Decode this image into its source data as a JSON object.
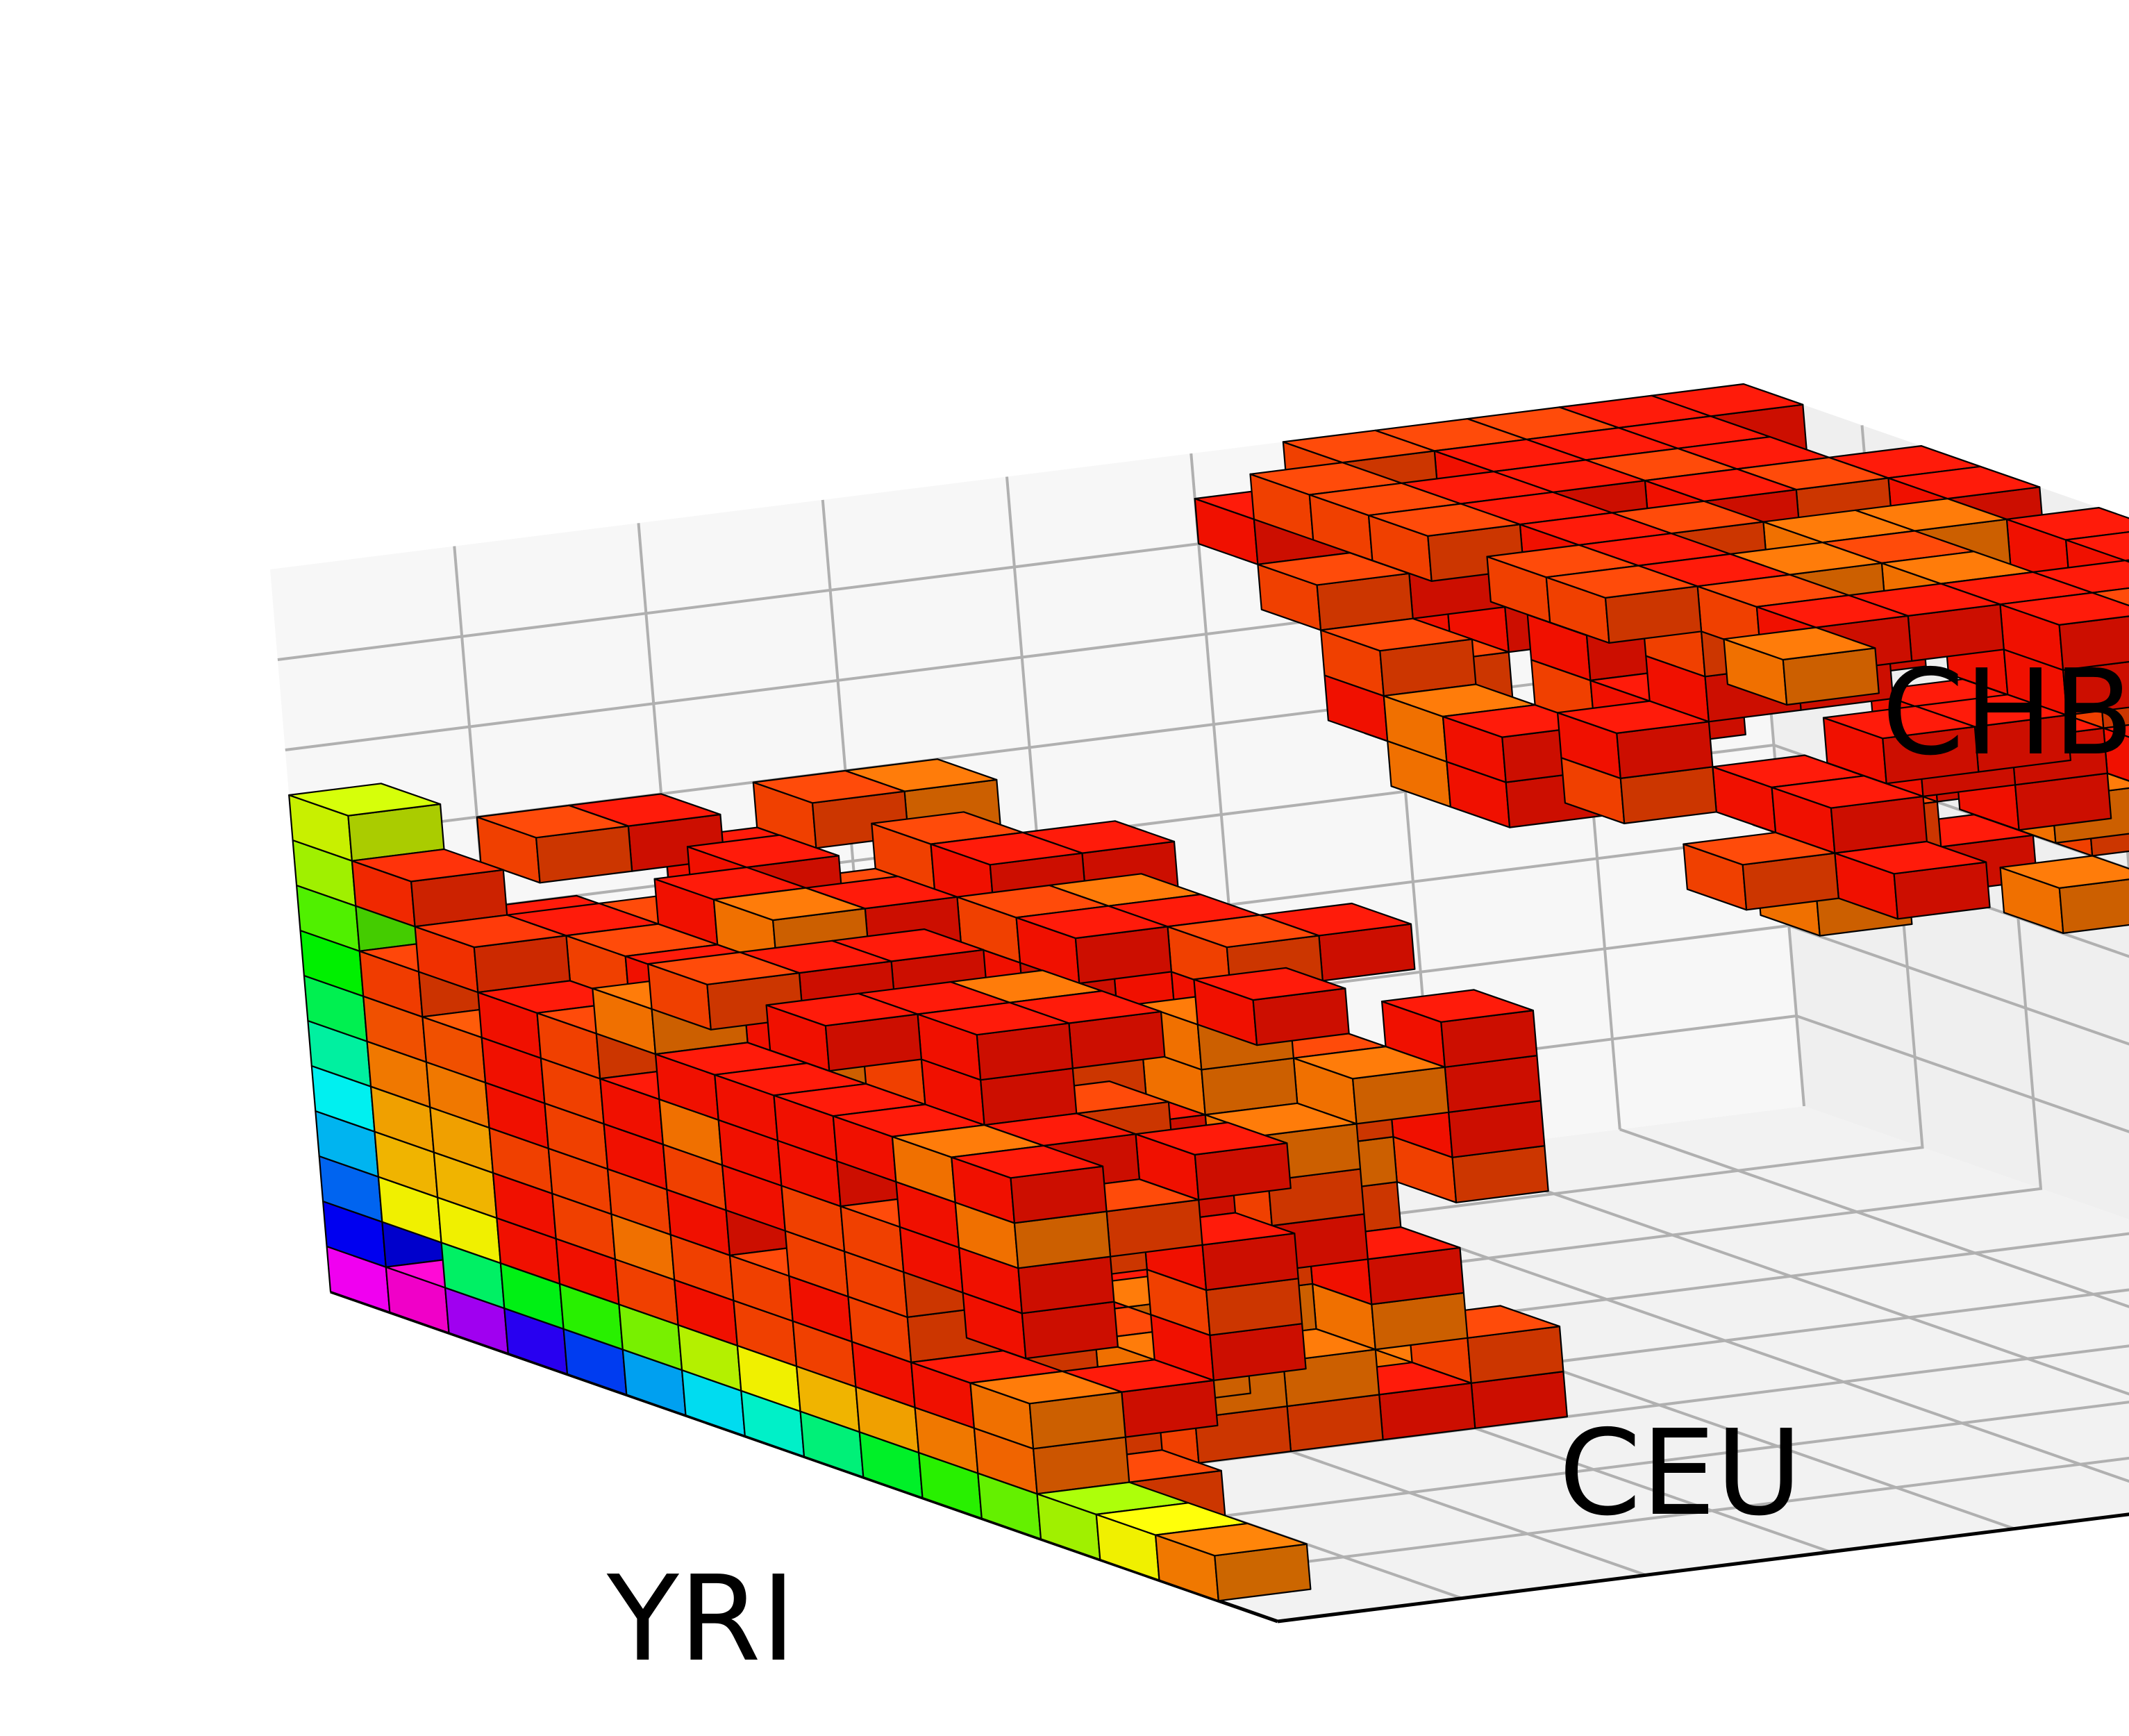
{
  "chart_data": {
    "type": "voxel",
    "projection": "3d",
    "axes": {
      "x": {
        "label": "YRI",
        "ticks": 8
      },
      "y": {
        "label": "CEU",
        "ticks": 8
      },
      "z": {
        "label": "CHB",
        "ticks": 8
      }
    },
    "grid": true,
    "tick_labels_visible": false,
    "colormap": "hsv",
    "voxel_counts_by_color_band": {
      "red": "majority",
      "orange": "many",
      "yellow": "some",
      "green": "some",
      "cyan_blue_magenta": "few"
    }
  }
}
